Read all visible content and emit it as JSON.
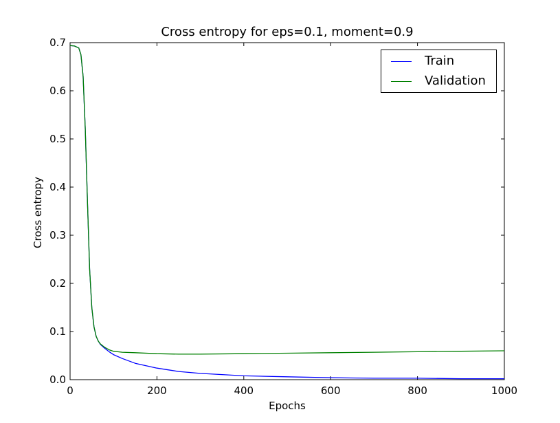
{
  "chart_data": {
    "type": "line",
    "title": "Cross entropy for eps=0.1, moment=0.9",
    "xlabel": "Epochs",
    "ylabel": "Cross entropy",
    "xlim": [
      0,
      1000
    ],
    "ylim": [
      0.0,
      0.7
    ],
    "x_ticks": [
      "0",
      "200",
      "400",
      "600",
      "800",
      "1000"
    ],
    "y_ticks": [
      "0.0",
      "0.1",
      "0.2",
      "0.3",
      "0.4",
      "0.5",
      "0.6",
      "0.7"
    ],
    "grid": false,
    "legend_position": "top-right",
    "series": [
      {
        "name": "Train",
        "color": "#0000ff",
        "x": [
          0,
          10,
          20,
          25,
          30,
          35,
          40,
          45,
          50,
          55,
          60,
          65,
          70,
          80,
          90,
          100,
          120,
          150,
          200,
          250,
          300,
          400,
          500,
          600,
          700,
          800,
          900,
          1000
        ],
        "y": [
          0.694,
          0.693,
          0.689,
          0.675,
          0.63,
          0.52,
          0.37,
          0.23,
          0.15,
          0.11,
          0.09,
          0.08,
          0.073,
          0.065,
          0.058,
          0.052,
          0.044,
          0.034,
          0.024,
          0.017,
          0.013,
          0.008,
          0.006,
          0.004,
          0.003,
          0.003,
          0.002,
          0.002
        ]
      },
      {
        "name": "Validation",
        "color": "#008000",
        "x": [
          0,
          10,
          20,
          25,
          30,
          35,
          40,
          45,
          50,
          55,
          60,
          65,
          70,
          80,
          90,
          100,
          120,
          150,
          200,
          250,
          300,
          400,
          500,
          600,
          700,
          800,
          900,
          1000
        ],
        "y": [
          0.694,
          0.693,
          0.689,
          0.675,
          0.63,
          0.52,
          0.37,
          0.23,
          0.15,
          0.11,
          0.09,
          0.08,
          0.074,
          0.067,
          0.062,
          0.059,
          0.057,
          0.056,
          0.054,
          0.053,
          0.053,
          0.054,
          0.055,
          0.056,
          0.057,
          0.058,
          0.059,
          0.06
        ]
      }
    ]
  }
}
